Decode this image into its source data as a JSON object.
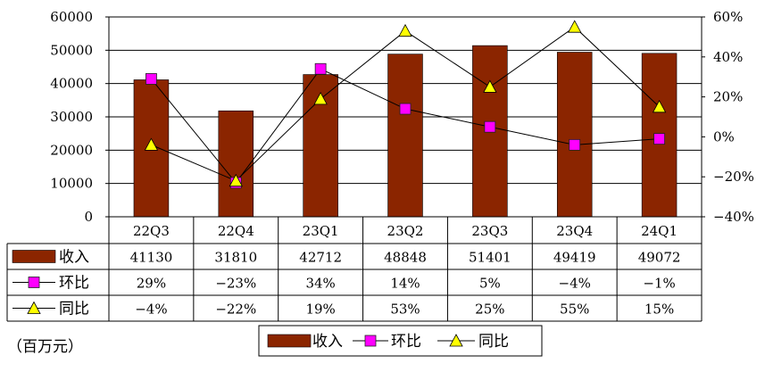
{
  "chart_data": {
    "type": "bar",
    "categories": [
      "22Q3",
      "22Q4",
      "23Q1",
      "23Q2",
      "23Q3",
      "23Q4",
      "24Q1"
    ],
    "series": [
      {
        "name": "收入",
        "type": "bar",
        "axis": "left",
        "values": [
          41130,
          31810,
          42712,
          48848,
          51401,
          49419,
          49072
        ],
        "table_values": [
          "41130",
          "31810",
          "42712",
          "48848",
          "51401",
          "49419",
          "49072"
        ],
        "color": "#8B2500"
      },
      {
        "name": "环比",
        "type": "line",
        "axis": "right",
        "marker": "square",
        "values": [
          29,
          -23,
          34,
          14,
          5,
          -4,
          -1
        ],
        "table_values": [
          "29%",
          "−23%",
          "34%",
          "14%",
          "5%",
          "−4%",
          "−1%"
        ],
        "color": "#FF00FF"
      },
      {
        "name": "同比",
        "type": "line",
        "axis": "right",
        "marker": "triangle",
        "values": [
          -4,
          -22,
          19,
          53,
          25,
          55,
          15
        ],
        "table_values": [
          "−4%",
          "−22%",
          "19%",
          "53%",
          "25%",
          "55%",
          "15%"
        ],
        "color": "#FFFF00"
      }
    ],
    "ylim_left": [
      0,
      60000
    ],
    "yticks_left": [
      "60000",
      "50000",
      "40000",
      "30000",
      "20000",
      "10000",
      "0"
    ],
    "ylim_right": [
      -40,
      60
    ],
    "yticks_right": [
      "60%",
      "40%",
      "20%",
      "0%",
      "−20%",
      "−40%"
    ],
    "grid": true,
    "data_table": true,
    "legend": "bottom",
    "unit_note": "（百万元）"
  }
}
